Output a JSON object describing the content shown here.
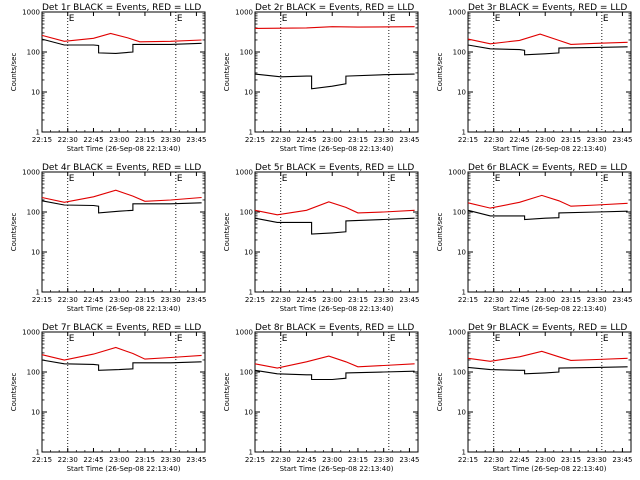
{
  "chart_data": [
    {
      "type": "line",
      "title": "Det 1r BLACK = Events, RED = LLD",
      "xlabel": "Start Time (26-Sep-08 22:13:40)",
      "ylabel": "Counts/sec",
      "yscale": "log",
      "ylim": [
        1,
        1000
      ],
      "ytick_labels": [
        "1",
        "10",
        "100",
        "1000"
      ],
      "xlim": [
        "22:15",
        "23:50"
      ],
      "xtick_labels": [
        "22:15",
        "22:30",
        "22:45",
        "23:00",
        "23:15",
        "23:30",
        "23:45"
      ],
      "markers": [
        {
          "time": "22:30",
          "label": "E"
        },
        {
          "time": "23:33",
          "label": "E"
        }
      ],
      "series": [
        {
          "color": "#000000",
          "points": [
            [
              "22:15",
              210
            ],
            [
              "22:28",
              150
            ],
            [
              "22:45",
              150
            ],
            [
              "22:48",
              145
            ],
            [
              "22:48",
              95
            ],
            [
              "22:58",
              92
            ],
            [
              "23:08",
              100
            ],
            [
              "23:08",
              155
            ],
            [
              "23:30",
              155
            ],
            [
              "23:48",
              165
            ]
          ]
        },
        {
          "color": "#e00000",
          "points": [
            [
              "22:15",
              260
            ],
            [
              "22:28",
              185
            ],
            [
              "22:45",
              220
            ],
            [
              "22:55",
              290
            ],
            [
              "23:05",
              225
            ],
            [
              "23:12",
              180
            ],
            [
              "23:30",
              185
            ],
            [
              "23:48",
              200
            ]
          ]
        }
      ]
    },
    {
      "type": "line",
      "title": "Det 2r BLACK = Events, RED = LLD",
      "xlabel": "Start Time (26-Sep-08 22:13:40)",
      "ylabel": "Counts/sec",
      "yscale": "log",
      "ylim": [
        1,
        1000
      ],
      "ytick_labels": [
        "1",
        "10",
        "100",
        "1000"
      ],
      "xlim": [
        "22:15",
        "23:50"
      ],
      "xtick_labels": [
        "22:15",
        "22:30",
        "22:45",
        "23:00",
        "23:15",
        "23:30",
        "23:45"
      ],
      "markers": [
        {
          "time": "22:30",
          "label": "E"
        },
        {
          "time": "23:33",
          "label": "E"
        }
      ],
      "series": [
        {
          "color": "#000000",
          "points": [
            [
              "22:15",
              28
            ],
            [
              "22:30",
              24
            ],
            [
              "22:45",
              25
            ],
            [
              "22:48",
              25
            ],
            [
              "22:48",
              12
            ],
            [
              "23:00",
              14
            ],
            [
              "23:08",
              16
            ],
            [
              "23:08",
              25
            ],
            [
              "23:30",
              27
            ],
            [
              "23:48",
              28
            ]
          ]
        },
        {
          "color": "#e00000",
          "points": [
            [
              "22:15",
              390
            ],
            [
              "22:45",
              400
            ],
            [
              "23:00",
              430
            ],
            [
              "23:15",
              420
            ],
            [
              "23:48",
              430
            ]
          ]
        }
      ]
    },
    {
      "type": "line",
      "title": "Det 3r BLACK = Events, RED = LLD",
      "xlabel": "Start Time (26-Sep-08 22:13:40)",
      "ylabel": "Counts/sec",
      "yscale": "log",
      "ylim": [
        1,
        1000
      ],
      "ytick_labels": [
        "1",
        "10",
        "100",
        "1000"
      ],
      "xlim": [
        "22:15",
        "23:50"
      ],
      "xtick_labels": [
        "22:15",
        "22:30",
        "22:45",
        "23:00",
        "23:15",
        "23:30",
        "23:45"
      ],
      "markers": [
        {
          "time": "22:30",
          "label": "E"
        },
        {
          "time": "23:33",
          "label": "E"
        }
      ],
      "series": [
        {
          "color": "#000000",
          "points": [
            [
              "22:15",
              150
            ],
            [
              "22:28",
              120
            ],
            [
              "22:45",
              115
            ],
            [
              "22:48",
              110
            ],
            [
              "22:48",
              85
            ],
            [
              "23:00",
              90
            ],
            [
              "23:08",
              95
            ],
            [
              "23:08",
              125
            ],
            [
              "23:30",
              130
            ],
            [
              "23:48",
              135
            ]
          ]
        },
        {
          "color": "#e00000",
          "points": [
            [
              "22:15",
              210
            ],
            [
              "22:28",
              160
            ],
            [
              "22:45",
              195
            ],
            [
              "22:57",
              280
            ],
            [
              "23:08",
              195
            ],
            [
              "23:15",
              155
            ],
            [
              "23:30",
              165
            ],
            [
              "23:48",
              175
            ]
          ]
        }
      ]
    },
    {
      "type": "line",
      "title": "Det 4r BLACK = Events, RED = LLD",
      "xlabel": "Start Time (26-Sep-08 22:13:40)",
      "ylabel": "Counts/sec",
      "yscale": "log",
      "ylim": [
        1,
        1000
      ],
      "ytick_labels": [
        "1",
        "10",
        "100",
        "1000"
      ],
      "xlim": [
        "22:15",
        "23:50"
      ],
      "xtick_labels": [
        "22:15",
        "22:30",
        "22:45",
        "23:00",
        "23:15",
        "23:30",
        "23:45"
      ],
      "markers": [
        {
          "time": "22:30",
          "label": "E"
        },
        {
          "time": "23:33",
          "label": "E"
        }
      ],
      "series": [
        {
          "color": "#000000",
          "points": [
            [
              "22:15",
              190
            ],
            [
              "22:28",
              150
            ],
            [
              "22:45",
              145
            ],
            [
              "22:48",
              140
            ],
            [
              "22:48",
              95
            ],
            [
              "23:00",
              105
            ],
            [
              "23:08",
              110
            ],
            [
              "23:08",
              160
            ],
            [
              "23:30",
              160
            ],
            [
              "23:48",
              170
            ]
          ]
        },
        {
          "color": "#e00000",
          "points": [
            [
              "22:15",
              230
            ],
            [
              "22:28",
              175
            ],
            [
              "22:45",
              240
            ],
            [
              "22:58",
              350
            ],
            [
              "23:08",
              250
            ],
            [
              "23:15",
              185
            ],
            [
              "23:30",
              200
            ],
            [
              "23:48",
              230
            ]
          ]
        }
      ]
    },
    {
      "type": "line",
      "title": "Det 5r BLACK = Events, RED = LLD",
      "xlabel": "Start Time (26-Sep-08 22:13:40)",
      "ylabel": "Counts/sec",
      "yscale": "log",
      "ylim": [
        1,
        1000
      ],
      "ytick_labels": [
        "1",
        "10",
        "100",
        "1000"
      ],
      "xlim": [
        "22:15",
        "23:50"
      ],
      "xtick_labels": [
        "22:15",
        "22:30",
        "22:45",
        "23:00",
        "23:15",
        "23:30",
        "23:45"
      ],
      "markers": [
        {
          "time": "22:30",
          "label": "E"
        },
        {
          "time": "23:33",
          "label": "E"
        }
      ],
      "series": [
        {
          "color": "#000000",
          "points": [
            [
              "22:15",
              70
            ],
            [
              "22:28",
              55
            ],
            [
              "22:45",
              55
            ],
            [
              "22:48",
              55
            ],
            [
              "22:48",
              28
            ],
            [
              "23:00",
              30
            ],
            [
              "23:08",
              32
            ],
            [
              "23:08",
              60
            ],
            [
              "23:30",
              65
            ],
            [
              "23:48",
              70
            ]
          ]
        },
        {
          "color": "#e00000",
          "points": [
            [
              "22:15",
              110
            ],
            [
              "22:28",
              85
            ],
            [
              "22:45",
              110
            ],
            [
              "22:58",
              180
            ],
            [
              "23:08",
              130
            ],
            [
              "23:15",
              95
            ],
            [
              "23:30",
              100
            ],
            [
              "23:48",
              110
            ]
          ]
        }
      ]
    },
    {
      "type": "line",
      "title": "Det 6r BLACK = Events, RED = LLD",
      "xlabel": "Start Time (26-Sep-08 22:13:40)",
      "ylabel": "Counts/sec",
      "yscale": "log",
      "ylim": [
        1,
        1000
      ],
      "ytick_labels": [
        "1",
        "10",
        "100",
        "1000"
      ],
      "xlim": [
        "22:15",
        "23:50"
      ],
      "xtick_labels": [
        "22:15",
        "22:30",
        "22:45",
        "23:00",
        "23:15",
        "23:30",
        "23:45"
      ],
      "markers": [
        {
          "time": "22:30",
          "label": "E"
        },
        {
          "time": "23:33",
          "label": "E"
        }
      ],
      "series": [
        {
          "color": "#000000",
          "points": [
            [
              "22:15",
              110
            ],
            [
              "22:28",
              80
            ],
            [
              "22:45",
              80
            ],
            [
              "22:48",
              80
            ],
            [
              "22:48",
              65
            ],
            [
              "23:00",
              70
            ],
            [
              "23:08",
              72
            ],
            [
              "23:08",
              95
            ],
            [
              "23:30",
              100
            ],
            [
              "23:48",
              105
            ]
          ]
        },
        {
          "color": "#e00000",
          "points": [
            [
              "22:15",
              170
            ],
            [
              "22:28",
              125
            ],
            [
              "22:45",
              175
            ],
            [
              "22:58",
              260
            ],
            [
              "23:08",
              190
            ],
            [
              "23:15",
              140
            ],
            [
              "23:30",
              150
            ],
            [
              "23:48",
              165
            ]
          ]
        }
      ]
    },
    {
      "type": "line",
      "title": "Det 7r BLACK = Events, RED = LLD",
      "xlabel": "Start Time (26-Sep-08 22:13:40)",
      "ylabel": "Counts/sec",
      "yscale": "log",
      "ylim": [
        1,
        1000
      ],
      "ytick_labels": [
        "1",
        "10",
        "100",
        "1000"
      ],
      "xlim": [
        "22:15",
        "23:50"
      ],
      "xtick_labels": [
        "22:15",
        "22:30",
        "22:45",
        "23:00",
        "23:15",
        "23:30",
        "23:45"
      ],
      "markers": [
        {
          "time": "22:30",
          "label": "E"
        },
        {
          "time": "23:33",
          "label": "E"
        }
      ],
      "series": [
        {
          "color": "#000000",
          "points": [
            [
              "22:15",
              200
            ],
            [
              "22:28",
              160
            ],
            [
              "22:45",
              155
            ],
            [
              "22:48",
              150
            ],
            [
              "22:48",
              110
            ],
            [
              "23:00",
              115
            ],
            [
              "23:08",
              120
            ],
            [
              "23:08",
              170
            ],
            [
              "23:30",
              170
            ],
            [
              "23:48",
              180
            ]
          ]
        },
        {
          "color": "#e00000",
          "points": [
            [
              "22:15",
              270
            ],
            [
              "22:28",
              200
            ],
            [
              "22:45",
              280
            ],
            [
              "22:58",
              410
            ],
            [
              "23:08",
              290
            ],
            [
              "23:15",
              210
            ],
            [
              "23:30",
              230
            ],
            [
              "23:48",
              260
            ]
          ]
        }
      ]
    },
    {
      "type": "line",
      "title": "Det 8r BLACK = Events, RED = LLD",
      "xlabel": "Start Time (26-Sep-08 22:13:40)",
      "ylabel": "Counts/sec",
      "yscale": "log",
      "ylim": [
        1,
        1000
      ],
      "ytick_labels": [
        "1",
        "10",
        "100",
        "1000"
      ],
      "xlim": [
        "22:15",
        "23:50"
      ],
      "xtick_labels": [
        "22:15",
        "22:30",
        "22:45",
        "23:00",
        "23:15",
        "23:30",
        "23:45"
      ],
      "markers": [
        {
          "time": "22:30",
          "label": "E"
        },
        {
          "time": "23:33",
          "label": "E"
        }
      ],
      "series": [
        {
          "color": "#000000",
          "points": [
            [
              "22:15",
              110
            ],
            [
              "22:28",
              90
            ],
            [
              "22:45",
              85
            ],
            [
              "22:48",
              85
            ],
            [
              "22:48",
              65
            ],
            [
              "23:00",
              65
            ],
            [
              "23:08",
              70
            ],
            [
              "23:08",
              95
            ],
            [
              "23:30",
              100
            ],
            [
              "23:48",
              105
            ]
          ]
        },
        {
          "color": "#e00000",
          "points": [
            [
              "22:15",
              160
            ],
            [
              "22:28",
              125
            ],
            [
              "22:45",
              180
            ],
            [
              "22:58",
              250
            ],
            [
              "23:08",
              180
            ],
            [
              "23:15",
              135
            ],
            [
              "23:30",
              145
            ],
            [
              "23:48",
              160
            ]
          ]
        }
      ]
    },
    {
      "type": "line",
      "title": "Det 9r BLACK = Events, RED = LLD",
      "xlabel": "Start Time (26-Sep-08 22:13:40)",
      "ylabel": "Counts/sec",
      "yscale": "log",
      "ylim": [
        1,
        1000
      ],
      "ytick_labels": [
        "1",
        "10",
        "100",
        "1000"
      ],
      "xlim": [
        "22:15",
        "23:50"
      ],
      "xtick_labels": [
        "22:15",
        "22:30",
        "22:45",
        "23:00",
        "23:15",
        "23:30",
        "23:45"
      ],
      "markers": [
        {
          "time": "22:30",
          "label": "E"
        },
        {
          "time": "23:33",
          "label": "E"
        }
      ],
      "series": [
        {
          "color": "#000000",
          "points": [
            [
              "22:15",
              130
            ],
            [
              "22:28",
              115
            ],
            [
              "22:45",
              110
            ],
            [
              "22:48",
              110
            ],
            [
              "22:48",
              90
            ],
            [
              "23:00",
              95
            ],
            [
              "23:08",
              100
            ],
            [
              "23:08",
              125
            ],
            [
              "23:30",
              130
            ],
            [
              "23:48",
              135
            ]
          ]
        },
        {
          "color": "#e00000",
          "points": [
            [
              "22:15",
              220
            ],
            [
              "22:28",
              185
            ],
            [
              "22:45",
              240
            ],
            [
              "22:58",
              330
            ],
            [
              "23:08",
              240
            ],
            [
              "23:15",
              195
            ],
            [
              "23:30",
              205
            ],
            [
              "23:48",
              220
            ]
          ]
        }
      ]
    }
  ]
}
